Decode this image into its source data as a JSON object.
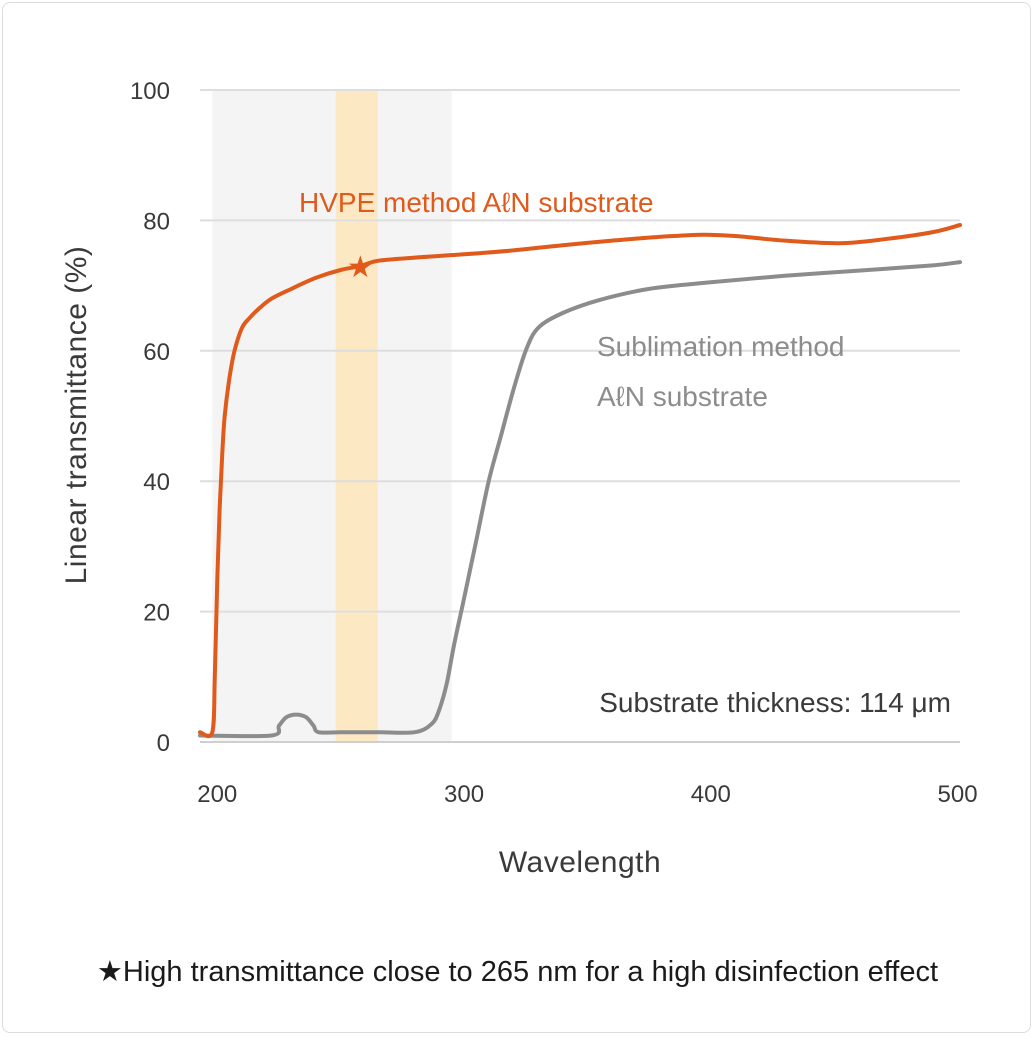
{
  "chart_data": {
    "type": "line",
    "xlabel": "Wavelength",
    "ylabel": "Linear transmittance (%)",
    "xlim": [
      193,
      501
    ],
    "ylim": [
      0,
      100
    ],
    "x_ticks": [
      200,
      300,
      400,
      500
    ],
    "y_ticks": [
      0,
      20,
      40,
      60,
      80,
      100
    ],
    "grid": "horizontal",
    "shaded_band": {
      "from": 198,
      "to": 295,
      "color": "#f4f4f4"
    },
    "highlight_band": {
      "from": 248,
      "to": 265,
      "color": "#fde8c4"
    },
    "series": [
      {
        "name": "HVPE method AℓN substrate",
        "color": "#e05a1c",
        "x": [
          193,
          198,
          199,
          200,
          201,
          202,
          203,
          205,
          207,
          210,
          213,
          217,
          222,
          230,
          240,
          250,
          258,
          265,
          280,
          300,
          320,
          340,
          360,
          380,
          397,
          410,
          430,
          452,
          470,
          490,
          501
        ],
        "y": [
          1.5,
          1.5,
          10,
          25,
          36,
          44,
          50,
          56,
          60,
          63.5,
          65,
          66.5,
          68,
          69.5,
          71.2,
          72.4,
          73,
          73.8,
          74.3,
          74.8,
          75.4,
          76.2,
          76.9,
          77.5,
          77.8,
          77.6,
          76.9,
          76.5,
          77.1,
          78.2,
          79.3
        ]
      },
      {
        "name": "Sublimation method AℓN substrate",
        "color": "#8c8c8c",
        "x": [
          193,
          222,
          225,
          228,
          232,
          236,
          239,
          241,
          250,
          265,
          280,
          287,
          290,
          293,
          296,
          300,
          305,
          310,
          315,
          320,
          325,
          330,
          340,
          355,
          375,
          400,
          430,
          460,
          490,
          501
        ],
        "y": [
          1,
          1,
          2.5,
          3.8,
          4.2,
          3.8,
          2.5,
          1.5,
          1.5,
          1.5,
          1.5,
          2.8,
          5,
          9,
          15,
          22,
          31,
          40,
          47,
          54,
          60,
          63.5,
          65.8,
          67.8,
          69.5,
          70.5,
          71.5,
          72.3,
          73.1,
          73.6
        ]
      }
    ],
    "labels": {
      "hvpe": "HVPE method AℓN substrate",
      "sublimation_line1": "Sublimation method",
      "sublimation_line2": "AℓN substrate",
      "thickness": "Substrate thickness: 114 μm"
    },
    "marker": {
      "symbol": "★",
      "x": 258,
      "y": 73,
      "color": "#e05a1c"
    }
  },
  "footnote": "★High transmittance close to 265 nm for a high disinfection effect"
}
